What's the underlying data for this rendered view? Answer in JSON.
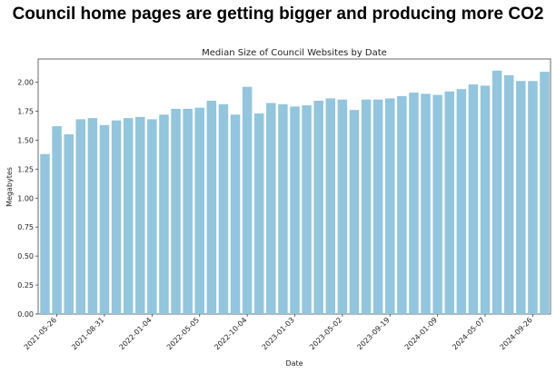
{
  "headline": "Council home pages are getting bigger and producing more CO2",
  "chart_data": {
    "type": "bar",
    "title": "Median Size of Council Websites by Date",
    "xlabel": "Date",
    "ylabel": "Megabytes",
    "ylim": [
      0,
      2.2
    ],
    "yticks": [
      "0.00",
      "0.25",
      "0.50",
      "0.75",
      "1.00",
      "1.25",
      "1.50",
      "1.75",
      "2.00"
    ],
    "xtick_labels": [
      "2021-05-26",
      "2021-08-31",
      "2022-01-04",
      "2022-05-05",
      "2022-10-04",
      "2023-01-03",
      "2023-05-02",
      "2023-09-19",
      "2024-01-09",
      "2024-05-07",
      "2024-09-26"
    ],
    "xtick_bar_index": [
      1,
      5,
      9,
      13,
      17,
      21,
      25,
      29,
      33,
      37,
      41
    ],
    "values": [
      1.38,
      1.62,
      1.55,
      1.68,
      1.69,
      1.63,
      1.67,
      1.69,
      1.7,
      1.68,
      1.72,
      1.77,
      1.77,
      1.78,
      1.84,
      1.81,
      1.72,
      1.96,
      1.73,
      1.82,
      1.81,
      1.79,
      1.8,
      1.84,
      1.86,
      1.85,
      1.76,
      1.85,
      1.85,
      1.86,
      1.88,
      1.91,
      1.9,
      1.89,
      1.92,
      1.94,
      1.98,
      1.97,
      2.1,
      2.06,
      2.01,
      2.01,
      2.09
    ],
    "bar_color": "#92c5de",
    "grid": false,
    "legend": "none"
  }
}
